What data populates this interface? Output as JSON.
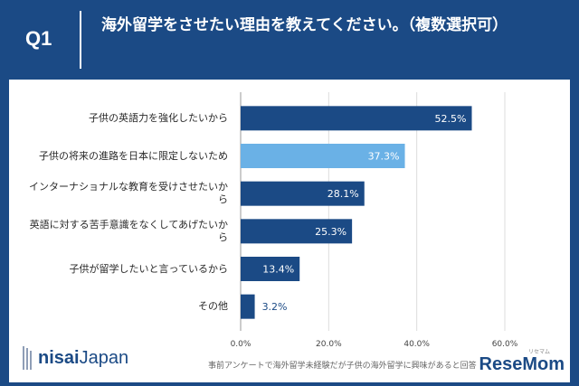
{
  "header": {
    "q_label": "Q1",
    "question": "海外留学をさせたい理由を教えてください。（複数選択可）"
  },
  "footer_note": "事前アンケートで海外留学未経験だが子供の海外留学に興味があると回答",
  "logos": {
    "nisai_part1": "nisai",
    "nisai_part2": "Japan",
    "resemom": "ReseMom",
    "resemom_kana": "リセマム"
  },
  "colors": {
    "primary_bar": "#1b4a85",
    "highlight_bar": "#6ab1e6",
    "header_bg": "#1b4a85"
  },
  "chart_data": {
    "type": "bar",
    "orientation": "horizontal",
    "categories": [
      "子供の英語力を強化したいから",
      "子供の将来の進路を日本に限定しないため",
      "インターナショナルな教育を受けさせたいから",
      "英語に対する苦手意識をなくしてあげたいから",
      "子供が留学したいと言っているから",
      "その他"
    ],
    "values": [
      52.5,
      37.3,
      28.1,
      25.3,
      13.4,
      3.2
    ],
    "data_labels": [
      "52.5%",
      "37.3%",
      "28.1%",
      "25.3%",
      "13.4%",
      "3.2%"
    ],
    "highlight_index": 1,
    "xlim": [
      0,
      60
    ],
    "xticks": [
      "0.0%",
      "20.0%",
      "40.0%",
      "60.0%"
    ],
    "grid": true
  }
}
